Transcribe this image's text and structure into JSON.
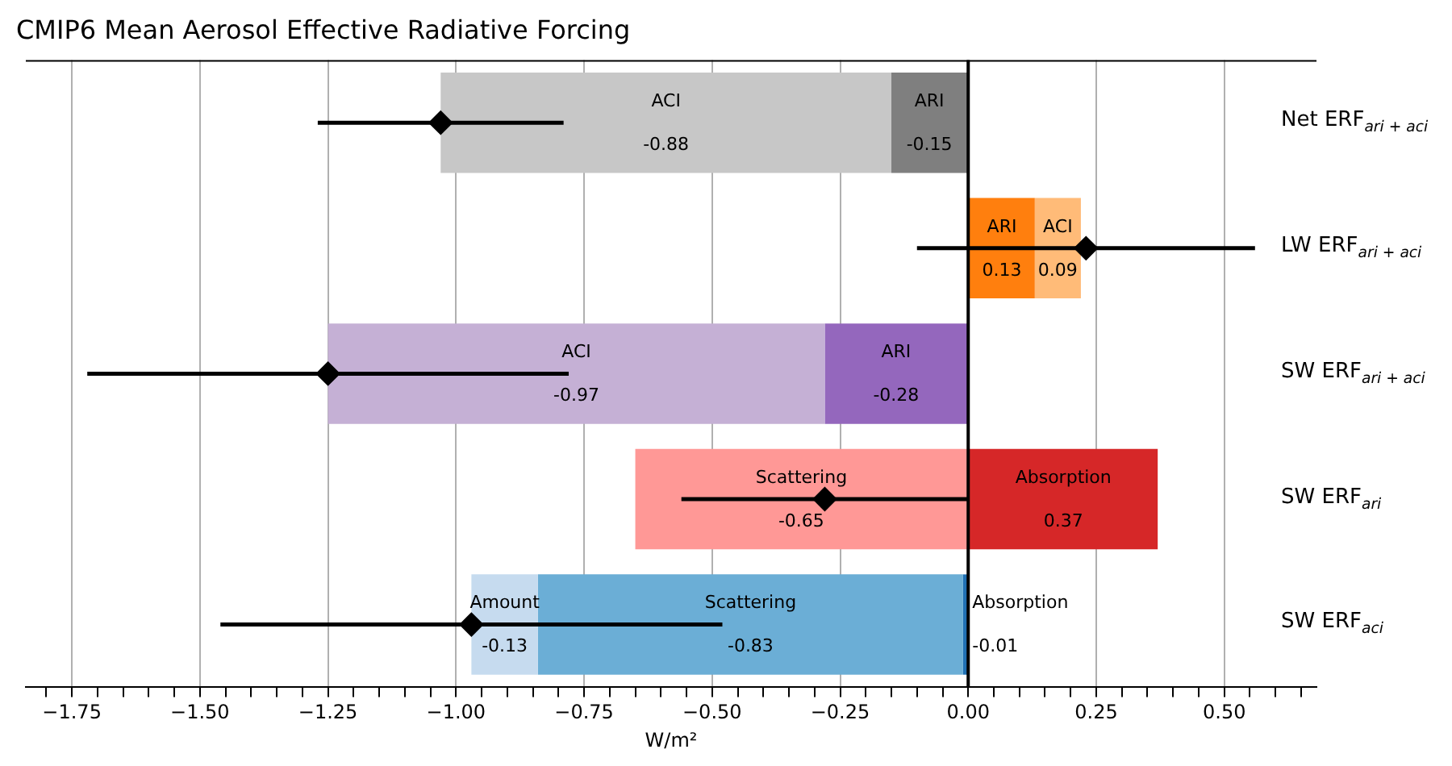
{
  "chart_data": {
    "type": "bar",
    "orientation": "horizontal",
    "title": "CMIP6 Mean Aerosol Effective Radiative Forcing",
    "xlabel": "W/m²",
    "categories": [
      "Net ERF$_{ari + aci}$",
      "LW ERF$_{ari + aci}$",
      "SW ERF$_{ari + aci}$",
      "SW ERF$_{ari}$",
      "SW ERF$_{aci}$"
    ],
    "series": [
      {
        "name": "ACI",
        "color": "#c7c7c7",
        "values": [
          -0.88,
          null,
          null,
          null,
          null
        ],
        "base": [
          -0.15,
          null,
          null,
          null,
          null
        ],
        "value_labels": [
          "-0.88",
          null,
          null,
          null,
          null
        ]
      },
      {
        "name": "ARI",
        "color": "#7f7f7f",
        "values": [
          -0.15,
          null,
          null,
          null,
          null
        ],
        "base": [
          0,
          null,
          null,
          null,
          null
        ],
        "value_labels": [
          "-0.15",
          null,
          null,
          null,
          null
        ]
      },
      {
        "name": "ARI",
        "color": "#ff7f0e",
        "values": [
          null,
          0.13,
          null,
          null,
          null
        ],
        "base": [
          null,
          0,
          null,
          null,
          null
        ],
        "value_labels": [
          null,
          "0.13",
          null,
          null,
          null
        ]
      },
      {
        "name": "ACI",
        "color": "#ffbb78",
        "values": [
          null,
          0.09,
          null,
          null,
          null
        ],
        "base": [
          null,
          0.13,
          null,
          null,
          null
        ],
        "value_labels": [
          null,
          "0.09",
          null,
          null,
          null
        ]
      },
      {
        "name": "ACI",
        "color": "#c5b0d5",
        "values": [
          null,
          null,
          -0.97,
          null,
          null
        ],
        "base": [
          null,
          null,
          -0.28,
          null,
          null
        ],
        "value_labels": [
          null,
          null,
          "-0.97",
          null,
          null
        ]
      },
      {
        "name": "ARI",
        "color": "#9467bd",
        "values": [
          null,
          null,
          -0.28,
          null,
          null
        ],
        "base": [
          null,
          null,
          0,
          null,
          null
        ],
        "value_labels": [
          null,
          null,
          "-0.28",
          null,
          null
        ]
      },
      {
        "name": "Scattering",
        "color": "#ff9896",
        "values": [
          null,
          null,
          null,
          -0.65,
          null
        ],
        "base": [
          null,
          null,
          null,
          0,
          null
        ],
        "value_labels": [
          null,
          null,
          null,
          "-0.65",
          null
        ]
      },
      {
        "name": "Absorption",
        "color": "#d62728",
        "values": [
          null,
          null,
          null,
          0.37,
          null
        ],
        "base": [
          null,
          null,
          null,
          0,
          null
        ],
        "value_labels": [
          null,
          null,
          null,
          "0.37",
          null
        ]
      },
      {
        "name": "Amount",
        "color": "#c6dbef",
        "values": [
          null,
          null,
          null,
          null,
          -0.13
        ],
        "base": [
          null,
          null,
          null,
          null,
          -0.84
        ],
        "value_labels": [
          null,
          null,
          null,
          null,
          "-0.13"
        ]
      },
      {
        "name": "Scattering",
        "color": "#6baed6",
        "values": [
          null,
          null,
          null,
          null,
          -0.83
        ],
        "base": [
          null,
          null,
          null,
          null,
          -0.01
        ],
        "value_labels": [
          null,
          null,
          null,
          null,
          "-0.83"
        ]
      },
      {
        "name": "Absorption",
        "color": "#2171b5",
        "values": [
          null,
          null,
          null,
          null,
          -0.01
        ],
        "base": [
          null,
          null,
          null,
          null,
          0
        ],
        "value_labels": [
          null,
          null,
          null,
          null,
          "-0.01"
        ]
      },
      {
        "type": "scatter",
        "color": "#000000",
        "marker": "diamond",
        "values": [
          -1.03,
          0.23,
          -1.25,
          -0.28,
          -0.97
        ],
        "errors": [
          [
            -1.27,
            -0.79
          ],
          [
            -0.1,
            0.56
          ],
          [
            -1.72,
            -0.78
          ],
          [
            -0.56,
            0
          ],
          [
            -1.46,
            -0.48
          ]
        ]
      }
    ],
    "xlim": [
      -1.84,
      0.68
    ],
    "xticks": [
      {
        "value": -1.8,
        "label": null
      },
      {
        "value": -1.75,
        "label": "−1.75"
      },
      {
        "value": -1.7,
        "label": null
      },
      {
        "value": -1.65,
        "label": null
      },
      {
        "value": -1.6,
        "label": null
      },
      {
        "value": -1.55,
        "label": null
      },
      {
        "value": -1.5,
        "label": "−1.50"
      },
      {
        "value": -1.45,
        "label": null
      },
      {
        "value": -1.4,
        "label": null
      },
      {
        "value": -1.35,
        "label": null
      },
      {
        "value": -1.3,
        "label": null
      },
      {
        "value": -1.25,
        "label": "−1.25"
      },
      {
        "value": -1.2,
        "label": null
      },
      {
        "value": -1.15,
        "label": null
      },
      {
        "value": -1.1,
        "label": null
      },
      {
        "value": -1.05,
        "label": null
      },
      {
        "value": -1.0,
        "label": "−1.00"
      },
      {
        "value": -0.95,
        "label": null
      },
      {
        "value": -0.9,
        "label": null
      },
      {
        "value": -0.85,
        "label": null
      },
      {
        "value": -0.8,
        "label": null
      },
      {
        "value": -0.75,
        "label": "−0.75"
      },
      {
        "value": -0.7,
        "label": null
      },
      {
        "value": -0.65,
        "label": null
      },
      {
        "value": -0.6,
        "label": null
      },
      {
        "value": -0.55,
        "label": null
      },
      {
        "value": -0.5,
        "label": "−0.50"
      },
      {
        "value": -0.45,
        "label": null
      },
      {
        "value": -0.4,
        "label": null
      },
      {
        "value": -0.35,
        "label": null
      },
      {
        "value": -0.3,
        "label": null
      },
      {
        "value": -0.25,
        "label": "−0.25"
      },
      {
        "value": -0.2,
        "label": null
      },
      {
        "value": -0.15,
        "label": null
      },
      {
        "value": -0.1,
        "label": null
      },
      {
        "value": -0.05,
        "label": null
      },
      {
        "value": 0,
        "label": "0.00"
      },
      {
        "value": 0.05,
        "label": null
      },
      {
        "value": 0.1,
        "label": null
      },
      {
        "value": 0.15,
        "label": null
      },
      {
        "value": 0.2,
        "label": null
      },
      {
        "value": 0.25,
        "label": "0.25"
      },
      {
        "value": 0.3,
        "label": null
      },
      {
        "value": 0.35,
        "label": null
      },
      {
        "value": 0.4,
        "label": null
      },
      {
        "value": 0.45,
        "label": null
      },
      {
        "value": 0.5,
        "label": "0.50"
      },
      {
        "value": 0.55,
        "label": null
      },
      {
        "value": 0.6,
        "label": null
      },
      {
        "value": 0.65,
        "label": null
      }
    ],
    "grid": "x",
    "legend": false,
    "ref_lines": [
      {
        "axis": "x",
        "value": 0,
        "color": "#000000"
      }
    ]
  }
}
